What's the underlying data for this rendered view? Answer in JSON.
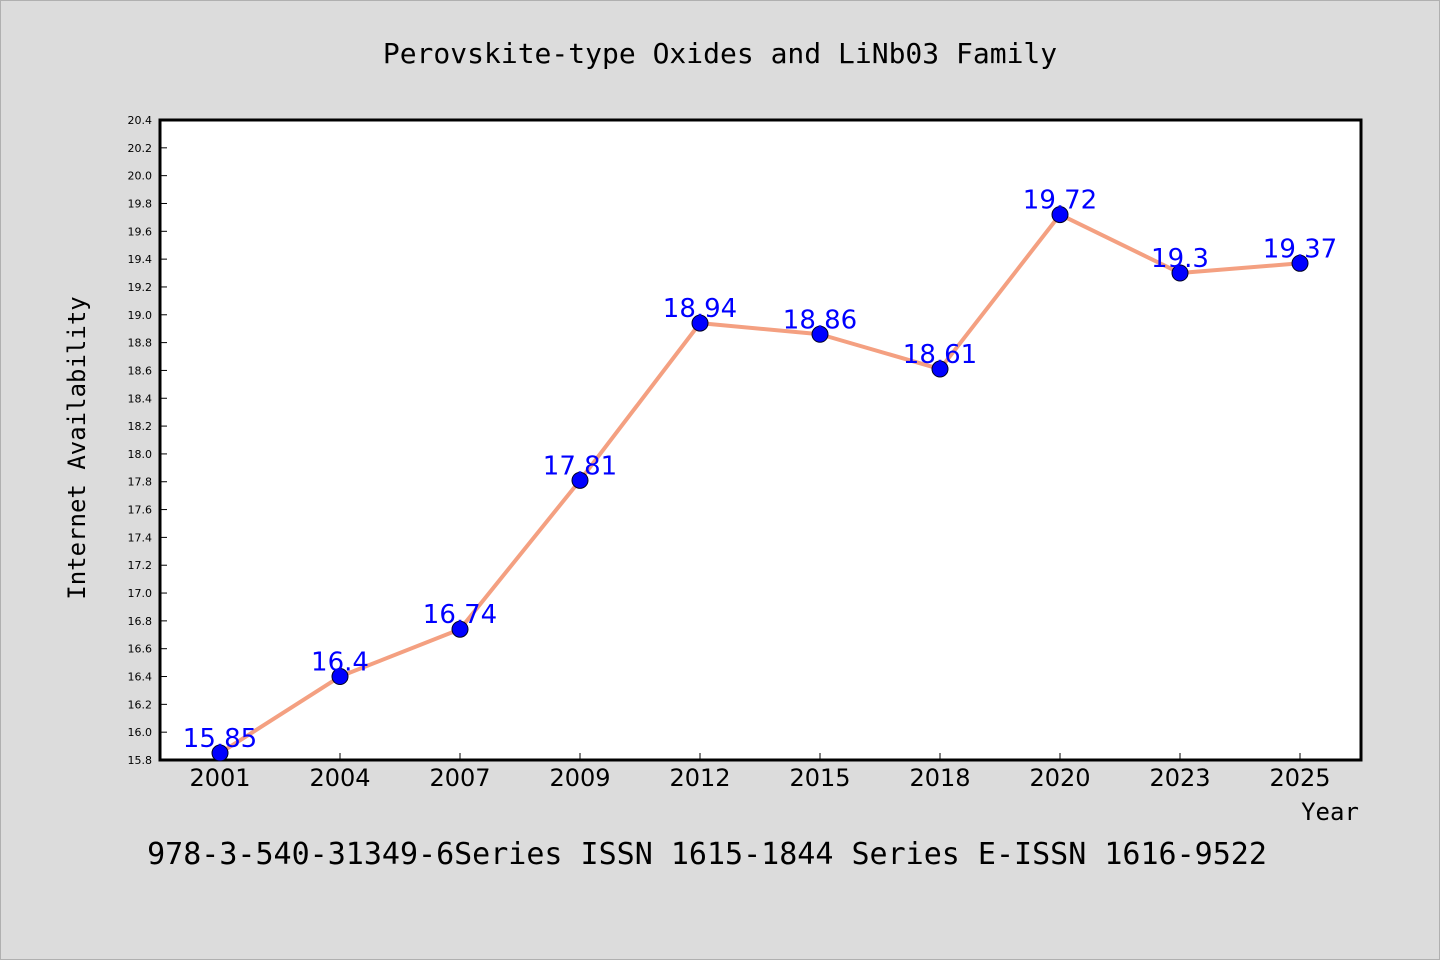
{
  "chart_data": {
    "type": "line",
    "title": "Perovskite-type Oxides and LiNb03 Family",
    "xlabel": "Year",
    "ylabel": "Internet Availability",
    "caption": "978-3-540-31349-6Series ISSN 1615-1844 Series E-ISSN 1616-9522",
    "categories": [
      "2001",
      "2004",
      "2007",
      "2009",
      "2012",
      "2015",
      "2018",
      "2020",
      "2023",
      "2025"
    ],
    "series": [
      {
        "values": [
          15.85,
          16.4,
          16.74,
          17.81,
          18.94,
          18.86,
          18.61,
          19.72,
          19.3,
          19.37
        ],
        "labels": [
          "15.85",
          "16.4",
          "16.74",
          "17.81",
          "18.94",
          "18.86",
          "18.61",
          "19.72",
          "19.3",
          "19.37"
        ]
      }
    ],
    "ylim": [
      15.8,
      20.4
    ],
    "yticks": [
      "15.8",
      "16.0",
      "16.2",
      "16.4",
      "16.6",
      "16.8",
      "17.0",
      "17.2",
      "17.4",
      "17.6",
      "17.8",
      "18.0",
      "18.2",
      "18.4",
      "18.6",
      "18.8",
      "19.0",
      "19.2",
      "19.4",
      "19.6",
      "19.8",
      "20.0",
      "20.2",
      "20.4"
    ],
    "grid": false,
    "legend": "none",
    "colors": {
      "line": "#f4a081",
      "marker": "#0000ff",
      "label": "#0000ff",
      "background": "#dcdcdc",
      "plot_background": "#ffffff"
    }
  }
}
